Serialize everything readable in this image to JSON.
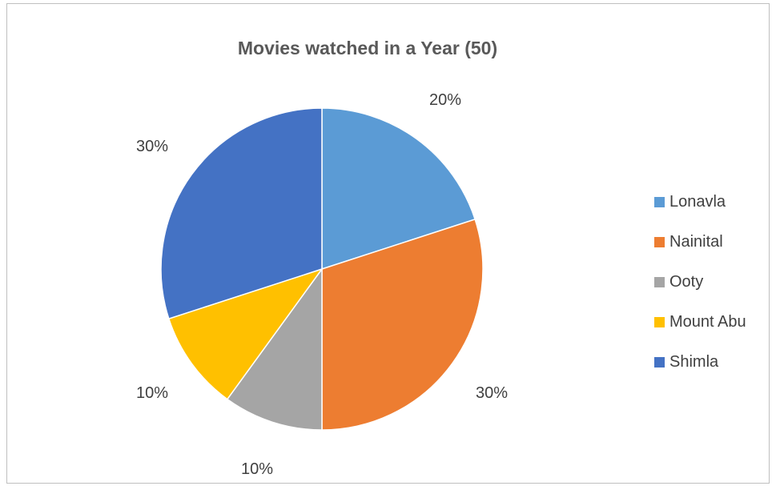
{
  "chart_data": {
    "type": "pie",
    "title": "Movies watched in a Year (50)",
    "categories": [
      "Lonavla",
      "Nainital",
      "Ooty",
      "Mount Abu",
      "Shimla"
    ],
    "values": [
      20,
      30,
      10,
      10,
      30
    ],
    "data_labels": [
      "20%",
      "30%",
      "10%",
      "10%",
      "30%"
    ],
    "colors": [
      "#5b9bd5",
      "#ed7d31",
      "#a5a5a5",
      "#ffc000",
      "#4472c4"
    ],
    "legend_position": "right"
  }
}
